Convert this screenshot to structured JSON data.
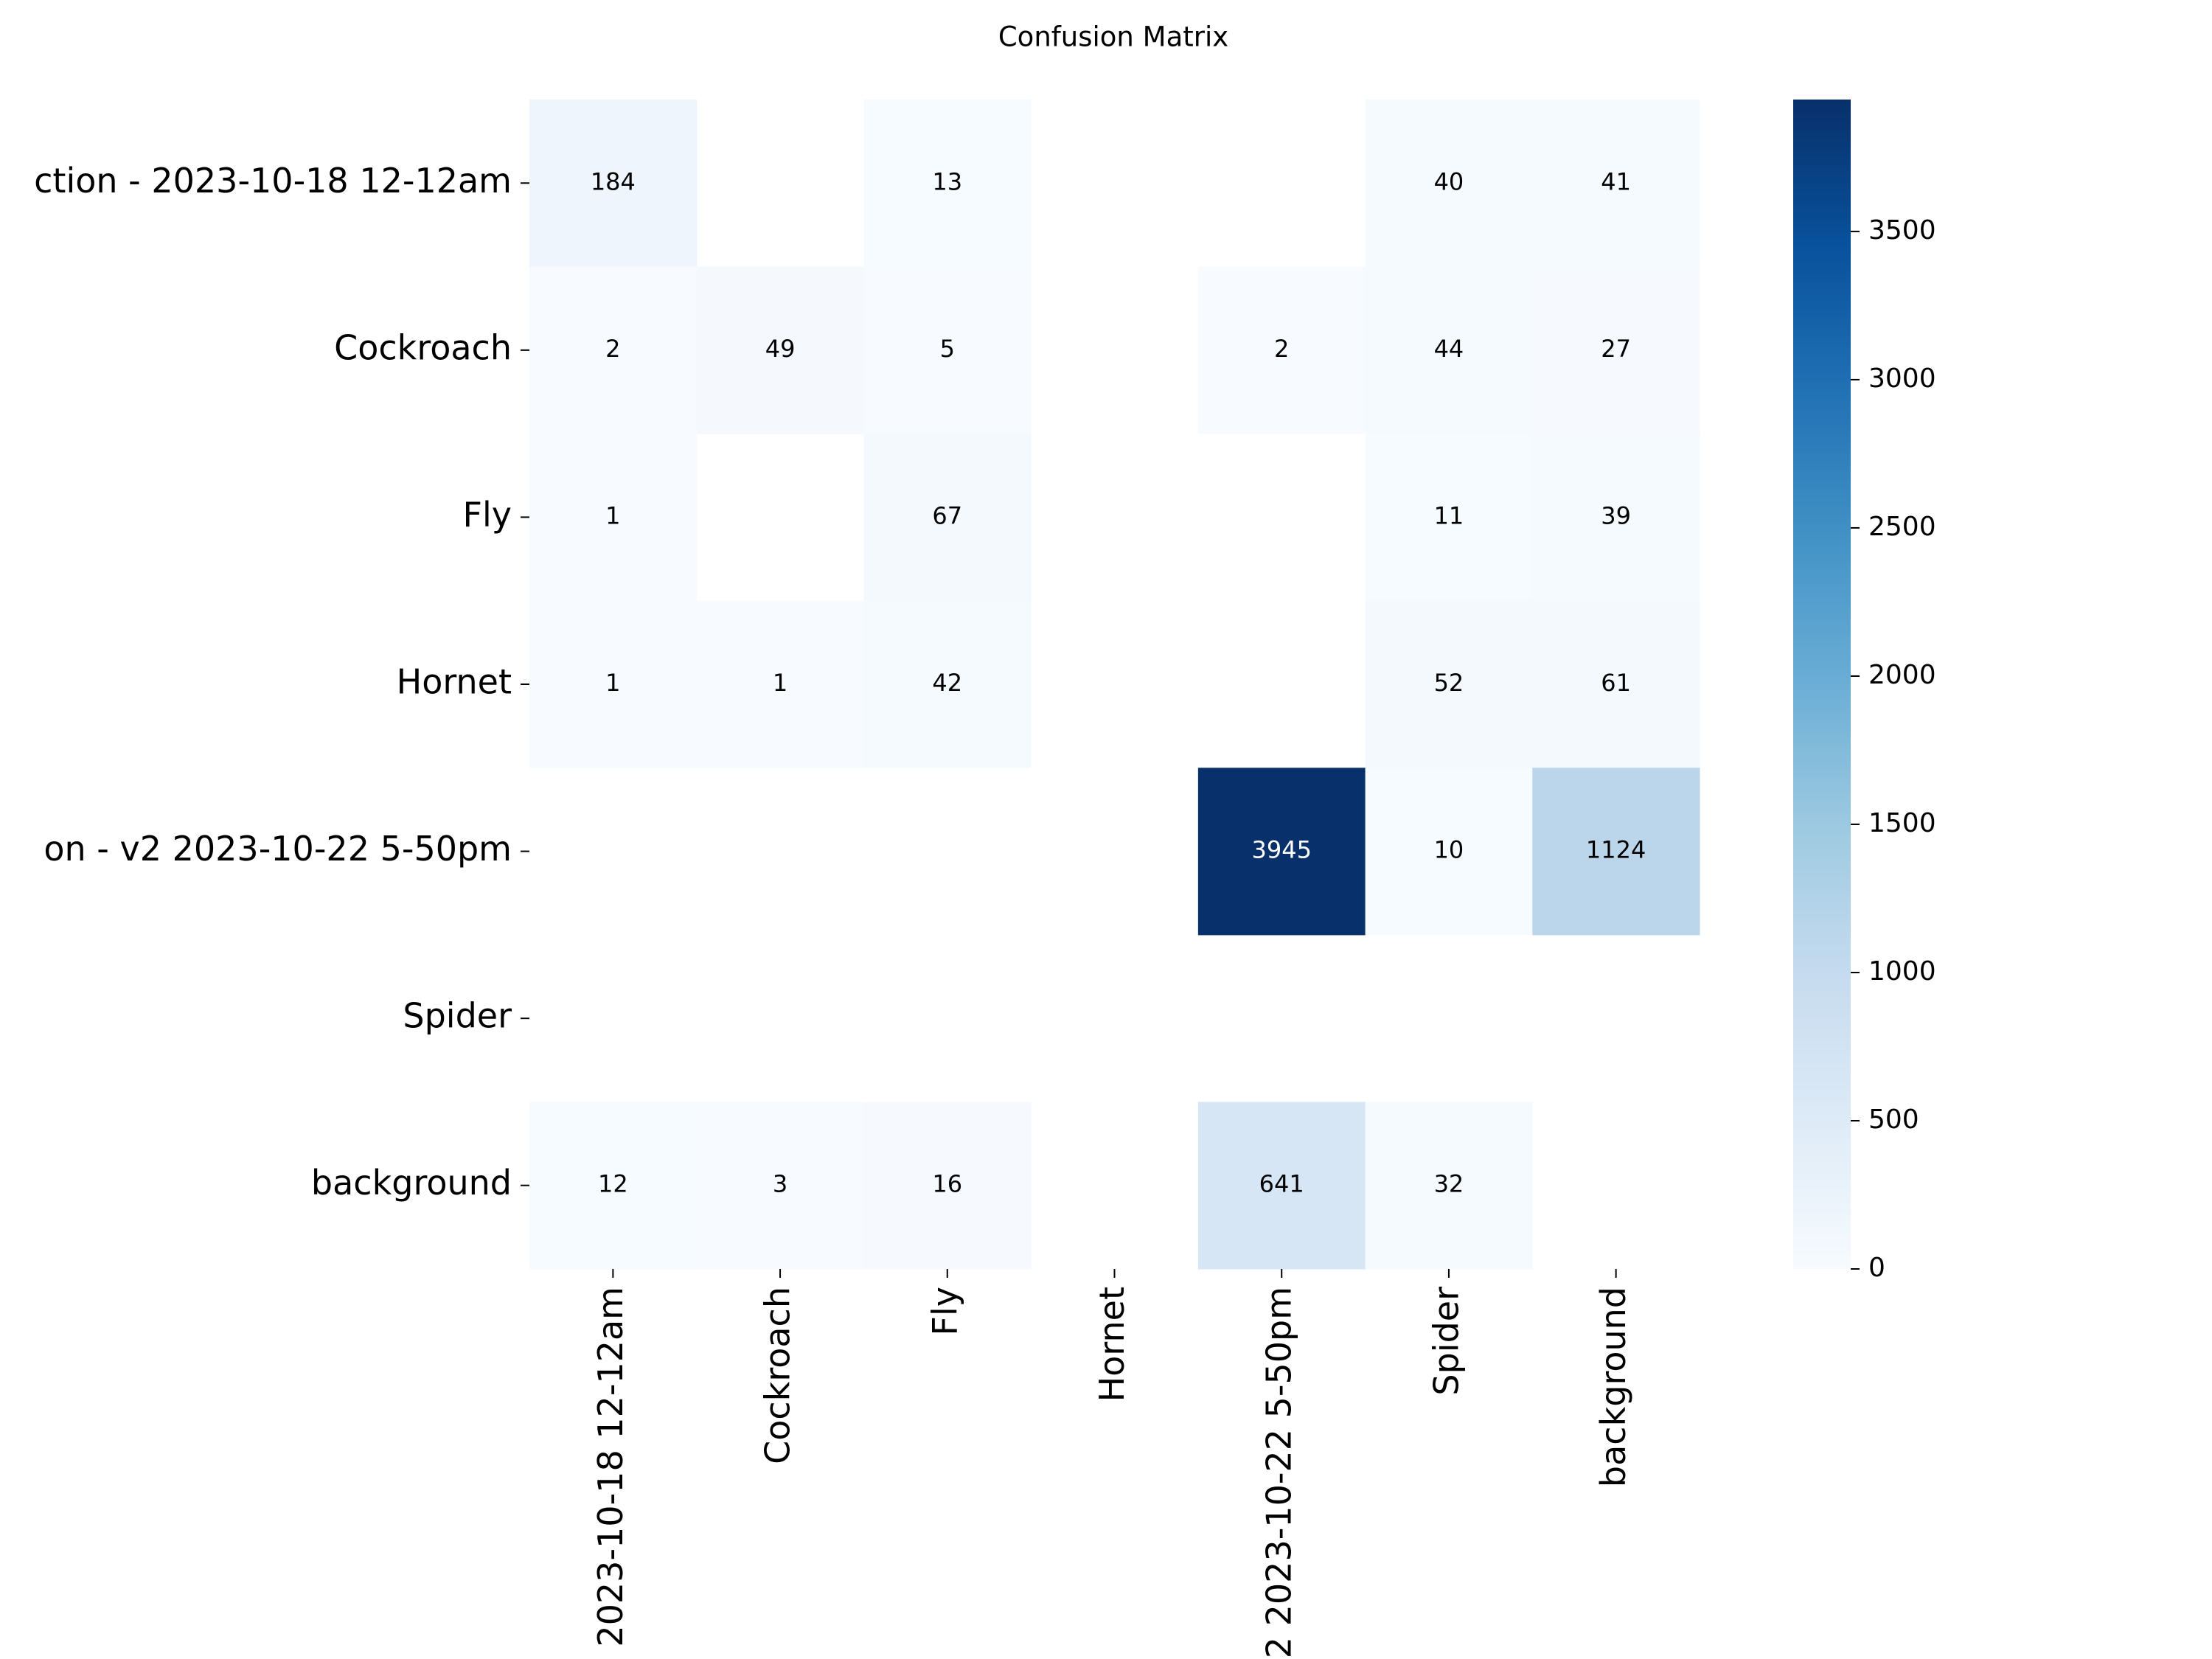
{
  "chart_data": {
    "type": "heatmap",
    "title": "Confusion Matrix",
    "categories": [
      "ction - 2023-10-18 12-12am",
      "Cockroach",
      "Fly",
      "Hornet",
      "on - v2 2023-10-22 5-50pm",
      "Spider",
      "background"
    ],
    "x_categories": [
      "2023-10-18 12-12am",
      "Cockroach",
      "Fly",
      "Hornet",
      "2 2023-10-22 5-50pm",
      "Spider",
      "background"
    ],
    "z": [
      [
        184,
        null,
        13,
        null,
        null,
        40,
        41
      ],
      [
        2,
        49,
        5,
        null,
        2,
        44,
        27
      ],
      [
        1,
        null,
        67,
        null,
        null,
        11,
        39
      ],
      [
        1,
        1,
        42,
        null,
        null,
        52,
        61
      ],
      [
        null,
        null,
        null,
        null,
        3945,
        10,
        1124
      ],
      [
        null,
        null,
        null,
        null,
        null,
        null,
        null
      ],
      [
        12,
        3,
        16,
        null,
        641,
        32,
        null
      ]
    ],
    "zlim": [
      0,
      3945
    ],
    "zticks": [
      0,
      500,
      1000,
      1500,
      2000,
      2500,
      3000,
      3500
    ],
    "colormap": [
      "#f7fbff",
      "#deebf7",
      "#c6dbef",
      "#9ecae1",
      "#6baed6",
      "#4292c6",
      "#2171b5",
      "#08519c",
      "#08306b"
    ]
  }
}
